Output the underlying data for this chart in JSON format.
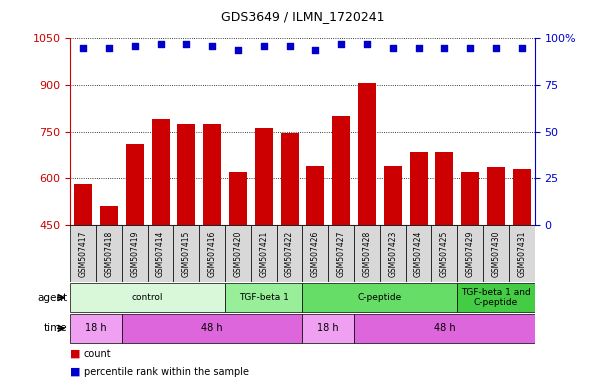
{
  "title": "GDS3649 / ILMN_1720241",
  "samples": [
    "GSM507417",
    "GSM507418",
    "GSM507419",
    "GSM507414",
    "GSM507415",
    "GSM507416",
    "GSM507420",
    "GSM507421",
    "GSM507422",
    "GSM507426",
    "GSM507427",
    "GSM507428",
    "GSM507423",
    "GSM507424",
    "GSM507425",
    "GSM507429",
    "GSM507430",
    "GSM507431"
  ],
  "counts": [
    580,
    510,
    710,
    790,
    775,
    775,
    620,
    760,
    745,
    640,
    800,
    905,
    640,
    685,
    685,
    620,
    635,
    630
  ],
  "percentile_ranks": [
    95,
    95,
    96,
    97,
    97,
    96,
    94,
    96,
    96,
    94,
    97,
    97,
    95,
    95,
    95,
    95,
    95,
    95
  ],
  "ylim_left": [
    450,
    1050
  ],
  "ylim_right": [
    0,
    100
  ],
  "yticks_left": [
    450,
    600,
    750,
    900,
    1050
  ],
  "yticks_right": [
    0,
    25,
    50,
    75,
    100
  ],
  "bar_color": "#cc0000",
  "dot_color": "#0000cc",
  "agent_groups": [
    {
      "label": "control",
      "start": 0,
      "end": 6,
      "color": "#d9f7d9"
    },
    {
      "label": "TGF-beta 1",
      "start": 6,
      "end": 9,
      "color": "#99ee99"
    },
    {
      "label": "C-peptide",
      "start": 9,
      "end": 15,
      "color": "#66dd66"
    },
    {
      "label": "TGF-beta 1 and\nC-peptide",
      "start": 15,
      "end": 18,
      "color": "#44cc44"
    }
  ],
  "time_groups": [
    {
      "label": "18 h",
      "start": 0,
      "end": 2,
      "color": "#f0a0f0"
    },
    {
      "label": "48 h",
      "start": 2,
      "end": 9,
      "color": "#dd66dd"
    },
    {
      "label": "18 h",
      "start": 9,
      "end": 11,
      "color": "#f0a0f0"
    },
    {
      "label": "48 h",
      "start": 11,
      "end": 18,
      "color": "#dd66dd"
    }
  ],
  "bg_color": "#ffffff",
  "axis_color_left": "#cc0000",
  "axis_color_right": "#0000cc",
  "legend_count_color": "#cc0000",
  "legend_dot_color": "#0000cc"
}
